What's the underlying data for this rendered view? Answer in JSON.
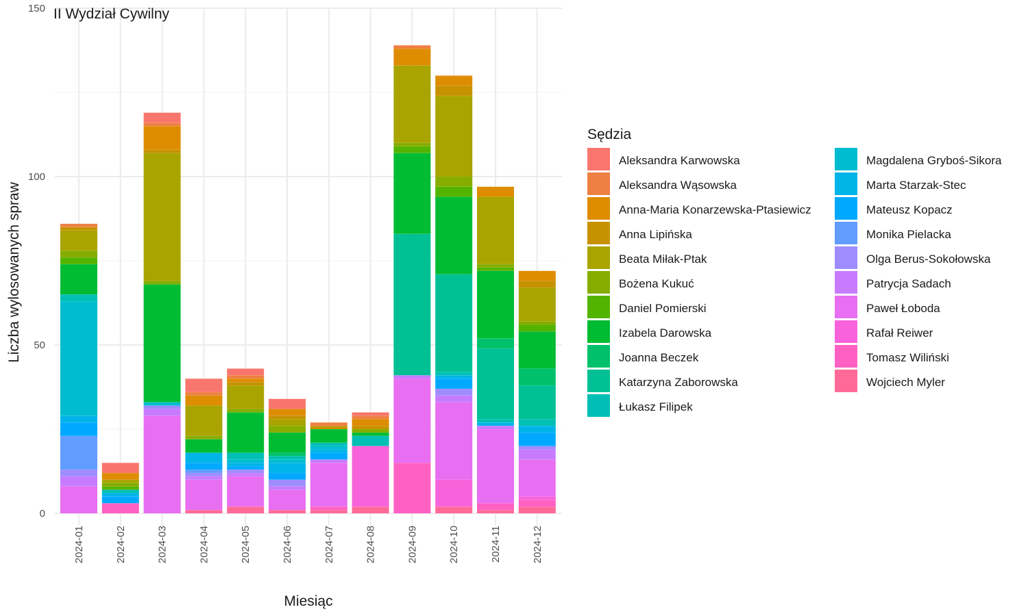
{
  "chart_data": {
    "type": "bar",
    "stacked": true,
    "title": "II Wydział Cywilny",
    "xlabel": "Miesiąc",
    "ylabel": "Liczba wylosowanych spraw",
    "ylim": [
      0,
      150
    ],
    "yticks": [
      0,
      50,
      100,
      150
    ],
    "grid": true,
    "legend_title": "Sędzia",
    "legend_position": "right",
    "categories": [
      "2024-01",
      "2024-02",
      "2024-03",
      "2024-04",
      "2024-05",
      "2024-06",
      "2024-07",
      "2024-08",
      "2024-09",
      "2024-10",
      "2024-11",
      "2024-12"
    ],
    "series": [
      {
        "name": "Aleksandra Karwowska",
        "color": "#F8766D",
        "values": [
          0,
          3,
          3,
          4,
          2,
          3,
          0,
          1,
          0,
          0,
          0,
          0
        ]
      },
      {
        "name": "Aleksandra Wąsowska",
        "color": "#EE8043",
        "values": [
          1,
          0,
          1,
          1,
          1,
          0,
          1,
          1,
          1,
          0,
          0,
          0
        ]
      },
      {
        "name": "Anna-Maria Konarzewska-Ptasiewicz",
        "color": "#DE8C00",
        "values": [
          0,
          2,
          7,
          3,
          1,
          2,
          0,
          2,
          5,
          3,
          3,
          3
        ]
      },
      {
        "name": "Anna Lipińska",
        "color": "#C69200",
        "values": [
          1,
          0,
          1,
          0,
          1,
          1,
          1,
          1,
          0,
          3,
          0,
          2
        ]
      },
      {
        "name": "Beata Miłak-Ptak",
        "color": "#A9A400",
        "values": [
          6,
          1,
          38,
          9,
          7,
          2,
          0,
          0,
          23,
          24,
          20,
          10
        ]
      },
      {
        "name": "Bożena Kukuć",
        "color": "#86AC00",
        "values": [
          2,
          1,
          1,
          1,
          1,
          2,
          0,
          1,
          1,
          3,
          1,
          1
        ]
      },
      {
        "name": "Daniel Pomierski",
        "color": "#53B400",
        "values": [
          2,
          1,
          0,
          0,
          0,
          0,
          0,
          0,
          2,
          3,
          1,
          2
        ]
      },
      {
        "name": "Izabela Darowska",
        "color": "#00BC33",
        "values": [
          9,
          0,
          35,
          4,
          12,
          6,
          4,
          1,
          24,
          23,
          20,
          11
        ]
      },
      {
        "name": "Joanna Beczek",
        "color": "#00C06B",
        "values": [
          0,
          0,
          0,
          0,
          0,
          1,
          0,
          0,
          0,
          0,
          3,
          5
        ]
      },
      {
        "name": "Katarzyna Zaborowska",
        "color": "#00C094",
        "values": [
          0,
          0,
          0,
          0,
          0,
          0,
          0,
          0,
          42,
          29,
          21,
          10
        ]
      },
      {
        "name": "Łukasz Filipek",
        "color": "#00BFB4",
        "values": [
          2,
          1,
          0,
          0,
          2,
          1,
          1,
          3,
          0,
          1,
          1,
          2
        ]
      },
      {
        "name": "Magdalena Gryboś-Sikora",
        "color": "#00BCD0",
        "values": [
          34,
          0,
          1,
          0,
          1,
          1,
          1,
          0,
          0,
          0,
          0,
          0
        ]
      },
      {
        "name": "Marta Starzak-Stec",
        "color": "#00B4E8",
        "values": [
          2,
          1,
          0,
          3,
          1,
          3,
          1,
          0,
          0,
          1,
          1,
          2
        ]
      },
      {
        "name": "Mateusz Kopacz",
        "color": "#00A9FF",
        "values": [
          4,
          2,
          0,
          2,
          1,
          2,
          2,
          0,
          0,
          3,
          0,
          4
        ]
      },
      {
        "name": "Monika Pielacka",
        "color": "#619CFF",
        "values": [
          10,
          0,
          0,
          1,
          0,
          0,
          0,
          0,
          0,
          0,
          0,
          0
        ]
      },
      {
        "name": "Olga Berus-Sokołowska",
        "color": "#9F8CFF",
        "values": [
          2,
          0,
          1,
          1,
          1,
          2,
          0,
          0,
          0,
          2,
          0,
          1
        ]
      },
      {
        "name": "Patrycja Sadach",
        "color": "#C77CFF",
        "values": [
          3,
          0,
          2,
          1,
          1,
          1,
          1,
          0,
          1,
          2,
          1,
          3
        ]
      },
      {
        "name": "Paweł Łoboda",
        "color": "#E86EF2",
        "values": [
          8,
          0,
          29,
          9,
          9,
          6,
          13,
          0,
          25,
          23,
          22,
          11
        ]
      },
      {
        "name": "Rafał Reiwer",
        "color": "#F863DB",
        "values": [
          0,
          0,
          0,
          0,
          0,
          0,
          0,
          18,
          0,
          8,
          0,
          1
        ]
      },
      {
        "name": "Tomasz Wiliński",
        "color": "#FF61C3",
        "values": [
          0,
          3,
          0,
          0,
          0,
          0,
          1,
          0,
          15,
          0,
          2,
          2
        ]
      },
      {
        "name": "Wojciech Myler",
        "color": "#FF6A98",
        "values": [
          0,
          0,
          0,
          1,
          2,
          1,
          1,
          2,
          0,
          2,
          1,
          2
        ]
      }
    ]
  }
}
